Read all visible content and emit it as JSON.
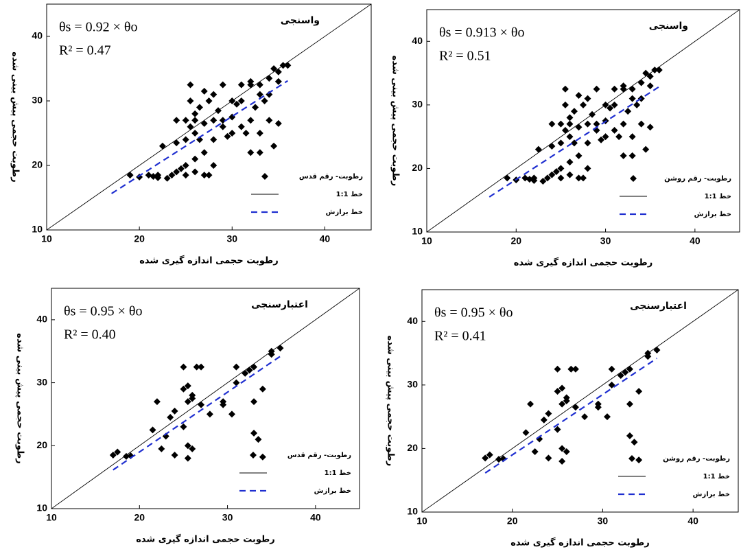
{
  "chart_data": [
    {
      "type": "scatter",
      "title": "واسنجی",
      "annotations": [
        "θs = 0.92 × θo",
        "R² = 0.47"
      ],
      "xlabel": "رطوبت حجمی اندازه گیری شده",
      "ylabel": "رطوبت حجمی پیش بینی شده",
      "xlim": [
        10,
        45
      ],
      "ylim": [
        10,
        45
      ],
      "xticks": [
        10,
        20,
        30,
        40
      ],
      "yticks": [
        10,
        20,
        30,
        40
      ],
      "legend": "lower right",
      "series": [
        {
          "name": "رطوبت- رقم قدس",
          "type": "scatter",
          "color": "#000000",
          "x": [
            19,
            20,
            21,
            21.5,
            22,
            22.5,
            23,
            23.5,
            24,
            24,
            24.5,
            25,
            25,
            25,
            25,
            25.5,
            25.5,
            25.5,
            26,
            26,
            26,
            26,
            26.5,
            26.5,
            27,
            27,
            27,
            27,
            27.5,
            27.5,
            28,
            28,
            28,
            28.5,
            29,
            29,
            29,
            29.5,
            30,
            30,
            30.5,
            31,
            31,
            31.5,
            32,
            32,
            32,
            32.5,
            33,
            33,
            33,
            33.5,
            34,
            34,
            34.5,
            34.5,
            35,
            35,
            35.5,
            36,
            31,
            30,
            33,
            28,
            26,
            24,
            22,
            35,
            34,
            32
          ],
          "values": [
            18.5,
            18.2,
            18.5,
            18.3,
            18.1,
            23,
            18,
            18.5,
            19,
            27,
            19.5,
            27,
            18.5,
            20,
            24,
            26,
            30,
            32.5,
            28,
            19,
            21,
            27,
            29,
            24,
            31.5,
            18.5,
            22,
            26.5,
            30,
            18.5,
            27,
            20,
            24,
            28.5,
            32.5,
            27,
            26,
            24.5,
            27.5,
            25,
            29.5,
            26,
            30,
            25,
            32.5,
            27,
            22,
            29,
            32.5,
            25,
            22,
            30,
            33.5,
            27,
            23,
            35,
            34.5,
            26.5,
            35.5,
            35.5,
            32.5,
            30,
            31,
            31,
            25,
            23.5,
            18.5,
            33,
            31,
            33
          ]
        },
        {
          "name": "خط 1:1",
          "type": "line",
          "color": "#000000",
          "x": [
            10,
            45
          ],
          "values": [
            10,
            45
          ]
        },
        {
          "name": "خط برازش",
          "type": "line",
          "color": "#1f2fd0",
          "dash": true,
          "x": [
            17,
            36
          ],
          "values": [
            15.64,
            33.12
          ]
        }
      ]
    },
    {
      "type": "scatter",
      "title": "واسنجی",
      "annotations": [
        "θs = 0.913 × θo",
        "R² = 0.51"
      ],
      "xlabel": "رطوبت حجمی اندازه گیری شده",
      "ylabel": "رطوبت حجمی پیش بینی شده",
      "xlim": [
        10,
        45
      ],
      "ylim": [
        10,
        45
      ],
      "xticks": [
        10,
        20,
        30,
        40
      ],
      "yticks": [
        10,
        20,
        30,
        40
      ],
      "legend": "lower right",
      "series": [
        {
          "name": "رطوبت- رقم روشن",
          "type": "scatter",
          "color": "#000000",
          "x": [
            19,
            20,
            21,
            21.5,
            22,
            22.5,
            23,
            23.5,
            24,
            24,
            24.5,
            25,
            25,
            25,
            25,
            25.5,
            25.5,
            25.5,
            26,
            26,
            26,
            26,
            26.5,
            26.5,
            27,
            27,
            27,
            27,
            27.5,
            27.5,
            28,
            28,
            28,
            28.5,
            29,
            29,
            29,
            29.5,
            30,
            30,
            30.5,
            31,
            31,
            31.5,
            32,
            32,
            32,
            32.5,
            33,
            33,
            33,
            33.5,
            34,
            34,
            34.5,
            34.5,
            35,
            35,
            35.5,
            36,
            31,
            30,
            33,
            28,
            26,
            24,
            22,
            35,
            34,
            32
          ],
          "values": [
            18.5,
            18.2,
            18.5,
            18.3,
            18.1,
            23,
            18,
            18.5,
            19,
            27,
            19.5,
            27,
            18.5,
            20,
            24,
            26,
            30,
            32.5,
            28,
            19,
            21,
            27,
            29,
            24,
            31.5,
            18.5,
            22,
            26.5,
            30,
            18.5,
            27,
            20,
            24,
            28.5,
            32.5,
            27,
            26,
            24.5,
            27.5,
            25,
            29.5,
            26,
            30,
            25,
            32.5,
            27,
            22,
            29,
            32.5,
            25,
            22,
            30,
            33.5,
            27,
            23,
            35,
            34.5,
            26.5,
            35.5,
            35.5,
            32.5,
            30,
            31,
            31,
            25,
            23.5,
            18.5,
            33,
            31,
            33
          ]
        },
        {
          "name": "خط 1:1",
          "type": "line",
          "color": "#000000",
          "x": [
            10,
            45
          ],
          "values": [
            10,
            45
          ]
        },
        {
          "name": "خط برازش",
          "type": "line",
          "color": "#1f2fd0",
          "dash": true,
          "x": [
            17,
            36
          ],
          "values": [
            15.52,
            32.87
          ]
        }
      ]
    },
    {
      "type": "scatter",
      "title": "اعتبارسنجی",
      "annotations": [
        "θs = 0.95 × θo",
        "R² = 0.40"
      ],
      "xlabel": "رطوبت حجمی اندازه گیری شده",
      "ylabel": "رطوبت حجمی پیش بینی شده",
      "xlim": [
        10,
        45
      ],
      "ylim": [
        10,
        45
      ],
      "xticks": [
        10,
        20,
        30,
        40
      ],
      "yticks": [
        10,
        20,
        30,
        40
      ],
      "legend": "lower right",
      "series": [
        {
          "name": "رطوبت- رقم قدس",
          "type": "scatter",
          "color": "#000000",
          "x": [
            17,
            17.5,
            18.5,
            19,
            21.5,
            22,
            22.5,
            23,
            23.5,
            24,
            24,
            25,
            25,
            25,
            25.5,
            25.5,
            25.5,
            25.5,
            26,
            26,
            26,
            26.5,
            27,
            27,
            28,
            29.5,
            29.5,
            30.5,
            31,
            31,
            32,
            32.5,
            33,
            33,
            33,
            33.5,
            34,
            34,
            35,
            35,
            36
          ],
          "values": [
            18.5,
            19,
            18.3,
            18.4,
            22.5,
            27,
            19.5,
            21.5,
            24.5,
            25.5,
            18.5,
            23,
            32.5,
            29,
            20,
            29.5,
            18,
            27,
            19.5,
            28,
            27.5,
            32.5,
            32.5,
            26.5,
            25,
            27,
            26.5,
            25,
            32.5,
            30,
            31.5,
            32,
            32.5,
            27,
            22,
            21,
            18.2,
            29,
            35,
            34.5,
            35.5
          ]
        },
        {
          "name": "خط 1:1",
          "type": "line",
          "color": "#000000",
          "x": [
            10,
            45
          ],
          "values": [
            10,
            45
          ]
        },
        {
          "name": "خط برازش",
          "type": "line",
          "color": "#1f2fd0",
          "dash": true,
          "x": [
            17,
            36
          ],
          "values": [
            16.15,
            34.2
          ]
        }
      ]
    },
    {
      "type": "scatter",
      "title": "اعتبارسنجی",
      "annotations": [
        "θs = 0.95 × θo",
        "R² = 0.41"
      ],
      "xlabel": "رطوبت حجمی اندازه گیری شده",
      "ylabel": "رطوبت حجمی پیش بینی شده",
      "xlim": [
        10,
        45
      ],
      "ylim": [
        10,
        45
      ],
      "xticks": [
        10,
        20,
        30,
        40
      ],
      "yticks": [
        10,
        20,
        30,
        40
      ],
      "legend": "lower right",
      "series": [
        {
          "name": "رطوبت- رقم روشن",
          "type": "scatter",
          "color": "#000000",
          "x": [
            17,
            17.5,
            18.5,
            19,
            21.5,
            22,
            22.5,
            23,
            23.5,
            24,
            24,
            25,
            25,
            25,
            25.5,
            25.5,
            25.5,
            25.5,
            26,
            26,
            26,
            26.5,
            27,
            27,
            28,
            29.5,
            29.5,
            30.5,
            31,
            31,
            32,
            32.5,
            33,
            33,
            33,
            33.5,
            34,
            34,
            35,
            35,
            36
          ],
          "values": [
            18.5,
            19,
            18.3,
            18.4,
            22.5,
            27,
            19.5,
            21.5,
            24.5,
            25.5,
            18.5,
            23,
            32.5,
            29,
            20,
            29.5,
            18,
            27,
            19.5,
            28,
            27.5,
            32.5,
            32.5,
            26.5,
            25,
            27,
            26.5,
            25,
            32.5,
            30,
            31.5,
            32,
            32.5,
            27,
            22,
            21,
            18.2,
            29,
            35,
            34.5,
            35.5
          ]
        },
        {
          "name": "خط 1:1",
          "type": "line",
          "color": "#000000",
          "x": [
            10,
            45
          ],
          "values": [
            10,
            45
          ]
        },
        {
          "name": "خط برازش",
          "type": "line",
          "color": "#1f2fd0",
          "dash": true,
          "x": [
            17,
            36
          ],
          "values": [
            16.15,
            34.2
          ]
        }
      ]
    }
  ]
}
